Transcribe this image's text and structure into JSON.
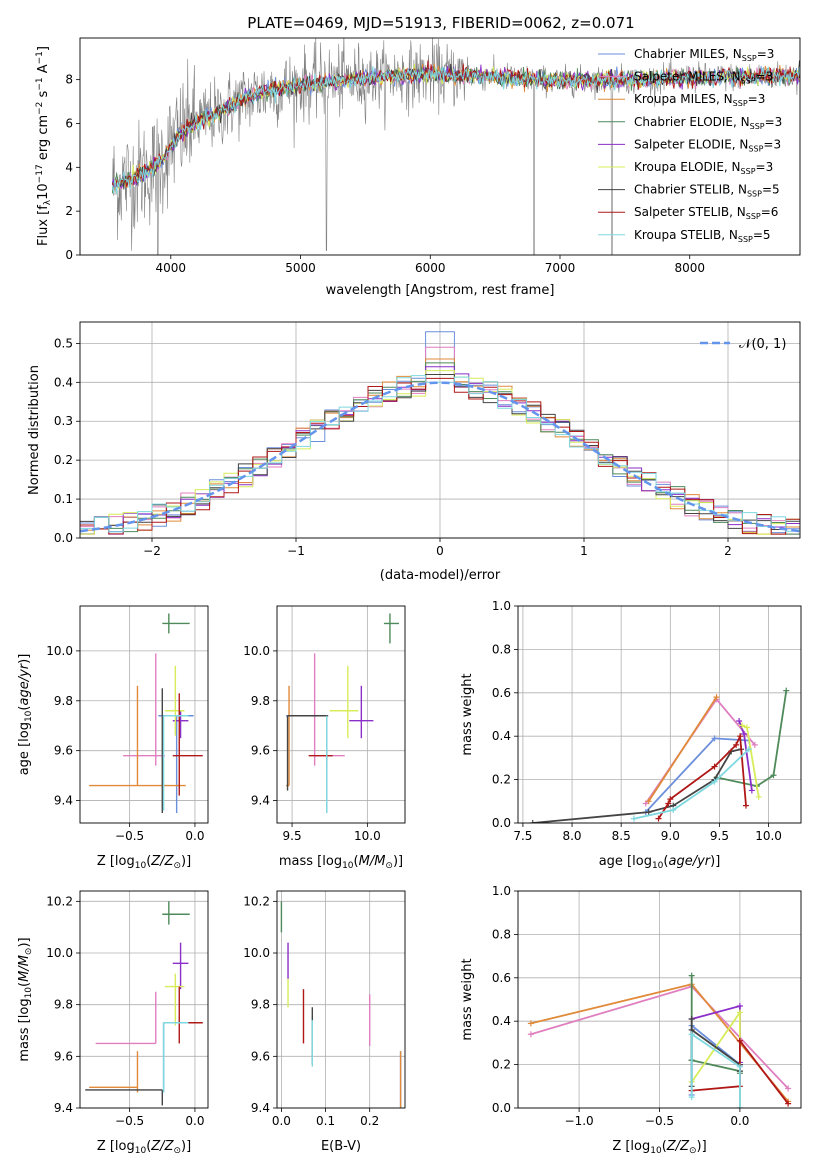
{
  "title": "PLATE=0469, MJD=51913, FIBERID=0062, z=0.071",
  "colors": {
    "Chabrier MILES": "#6b8fdc",
    "Salpeter MILES": "#e07fc0",
    "Kroupa MILES": "#e08a3a",
    "Chabrier ELODIE": "#4f8a5a",
    "Salpeter ELODIE": "#8a2fc8",
    "Kroupa ELODIE": "#d8ec5a",
    "Chabrier STELIB": "#444444",
    "Salpeter STELIB": "#b01818",
    "Kroupa STELIB": "#7fd8e0",
    "data": "#808080",
    "normal": "#6495ed"
  },
  "chart_data": [
    {
      "type": "line",
      "panel": "spectrum",
      "xlabel": "wavelength [Angstrom, rest frame]",
      "ylabel": "Flux [f_λ10^-17 erg cm^-2 s^-1 A^-1]",
      "xlim": [
        3300,
        8850
      ],
      "ylim": [
        0,
        9.9
      ],
      "xticks": [
        "4000",
        "5000",
        "6000",
        "7000",
        "8000"
      ],
      "yticks": [
        "0",
        "2",
        "4",
        "6",
        "8"
      ],
      "legend_position": "right",
      "legend": [
        {
          "name": "Chabrier MILES",
          "label": "Chabrier MILES, N",
          "sub": "SSP",
          "n": "=3"
        },
        {
          "name": "Salpeter MILES",
          "label": "Salpeter MILES, N",
          "sub": "SSP",
          "n": "=3"
        },
        {
          "name": "Kroupa MILES",
          "label": "Kroupa MILES, N",
          "sub": "SSP",
          "n": "=3"
        },
        {
          "name": "Chabrier ELODIE",
          "label": "Chabrier ELODIE, N",
          "sub": "SSP",
          "n": "=3"
        },
        {
          "name": "Salpeter ELODIE",
          "label": "Salpeter ELODIE, N",
          "sub": "SSP",
          "n": "=3"
        },
        {
          "name": "Kroupa ELODIE",
          "label": "Kroupa ELODIE, N",
          "sub": "SSP",
          "n": "=3"
        },
        {
          "name": "Chabrier STELIB",
          "label": "Chabrier STELIB, N",
          "sub": "SSP",
          "n": "=5"
        },
        {
          "name": "Salpeter STELIB",
          "label": "Salpeter STELIB, N",
          "sub": "SSP",
          "n": "=6"
        },
        {
          "name": "Kroupa STELIB",
          "label": "Kroupa STELIB, N",
          "sub": "SSP",
          "n": "=5"
        }
      ],
      "model_continuum": {
        "x": [
          3550,
          3650,
          3750,
          3850,
          3950,
          4050,
          4150,
          4250,
          4350,
          4450,
          4550,
          4650,
          4750,
          4850,
          4950,
          5050,
          5200,
          5400,
          5600,
          5800,
          6000,
          6200,
          6400,
          6600,
          6800,
          7000,
          7200,
          7400,
          7600,
          7800,
          8000,
          8200,
          8400,
          8600,
          8800
        ],
        "y": [
          3.2,
          3.4,
          3.6,
          3.9,
          4.5,
          5.4,
          5.9,
          6.2,
          6.4,
          6.8,
          7.1,
          7.3,
          7.5,
          7.6,
          7.7,
          7.8,
          7.9,
          8.0,
          8.1,
          8.2,
          8.25,
          8.2,
          8.15,
          8.1,
          8.0,
          7.95,
          7.95,
          8.0,
          8.0,
          8.05,
          8.1,
          8.1,
          8.15,
          8.15,
          8.2
        ]
      },
      "data_noise_sigma": 0.9
    },
    {
      "type": "line",
      "panel": "residual_histograms",
      "xlabel": "(data-model)/error",
      "ylabel": "Normed distribution",
      "xlim": [
        -2.5,
        2.5
      ],
      "ylim": [
        0,
        0.555
      ],
      "xticks": [
        "−2",
        "−1",
        "0",
        "1",
        "2"
      ],
      "yticks": [
        "0.0",
        "0.1",
        "0.2",
        "0.3",
        "0.4",
        "0.5"
      ],
      "grid": true,
      "bin_width": 0.1,
      "legend": [
        {
          "label": "𝒩(0, 1)"
        }
      ],
      "histogram_peak_values": [
        0.53,
        0.49,
        0.46,
        0.45,
        0.44,
        0.43,
        0.42,
        0.41,
        0.4
      ]
    },
    {
      "type": "scatter",
      "panel": "age_vs_Z",
      "xlabel": "Z [log10(Z/Z⊙)]",
      "ylabel": "age [log10(age/yr)]",
      "xlim": [
        -0.88,
        0.1
      ],
      "ylim": [
        9.31,
        10.18
      ],
      "xticks": [
        "−0.5",
        "0.0"
      ],
      "yticks": [
        "9.4",
        "9.6",
        "9.8",
        "10.0"
      ],
      "grid": true,
      "points": [
        {
          "series": "Chabrier MILES",
          "x": -0.14,
          "y": 9.74,
          "xerr": [
            0.14,
            0.13
          ],
          "yerr": [
            0.39,
            0.0
          ]
        },
        {
          "series": "Salpeter MILES",
          "x": -0.3,
          "y": 9.58,
          "xerr": [
            0.25,
            0.07
          ],
          "yerr": [
            0.04,
            0.41
          ]
        },
        {
          "series": "Kroupa MILES",
          "x": -0.44,
          "y": 9.46,
          "xerr": [
            0.37,
            0.37
          ],
          "yerr": [
            0.0,
            0.4
          ]
        },
        {
          "series": "Chabrier ELODIE",
          "x": -0.2,
          "y": 10.11,
          "xerr": [
            0.05,
            0.16
          ],
          "yerr": [
            0.04,
            0.04
          ]
        },
        {
          "series": "Salpeter ELODIE",
          "x": -0.11,
          "y": 9.72,
          "xerr": [
            0.06,
            0.06
          ],
          "yerr": [
            0.07,
            0.04
          ]
        },
        {
          "series": "Kroupa ELODIE",
          "x": -0.15,
          "y": 9.76,
          "xerr": [
            0.08,
            0.07
          ],
          "yerr": [
            0.1,
            0.18
          ]
        },
        {
          "series": "Chabrier STELIB",
          "x": -0.25,
          "y": 9.6,
          "xerr": [
            0.0,
            0.0
          ],
          "yerr": [
            0.25,
            0.25
          ]
        },
        {
          "series": "Salpeter STELIB",
          "x": -0.12,
          "y": 9.58,
          "xerr": [
            0.05,
            0.18
          ],
          "yerr": [
            0.16,
            0.25
          ]
        },
        {
          "series": "Kroupa STELIB",
          "x": -0.24,
          "y": 9.74,
          "xerr": [
            0.0,
            0.19
          ],
          "yerr": [
            0.38,
            0.0
          ]
        }
      ]
    },
    {
      "type": "scatter",
      "panel": "age_vs_mass",
      "xlabel": "mass [log10(M/M⊙)]",
      "ylabel": "",
      "xlim": [
        9.4,
        10.25
      ],
      "ylim": [
        9.31,
        10.18
      ],
      "xticks": [
        "9.5",
        "10.0"
      ],
      "yticks": [
        "9.4",
        "9.6",
        "9.8",
        "10.0"
      ],
      "grid": true,
      "points": [
        {
          "series": "Chabrier MILES",
          "x": 9.73,
          "y": 9.74,
          "xerr": [
            0.27,
            0.0
          ],
          "yerr": [
            0.39,
            0.0
          ]
        },
        {
          "series": "Salpeter MILES",
          "x": 9.65,
          "y": 9.58,
          "xerr": [
            0.0,
            0.2
          ],
          "yerr": [
            0.04,
            0.41
          ]
        },
        {
          "series": "Kroupa MILES",
          "x": 9.48,
          "y": 9.46,
          "xerr": [
            0.02,
            0.0
          ],
          "yerr": [
            0.0,
            0.4
          ]
        },
        {
          "series": "Chabrier ELODIE",
          "x": 10.15,
          "y": 10.11,
          "xerr": [
            0.04,
            0.06
          ],
          "yerr": [
            0.08,
            0.04
          ]
        },
        {
          "series": "Salpeter ELODIE",
          "x": 9.96,
          "y": 9.72,
          "xerr": [
            0.08,
            0.08
          ],
          "yerr": [
            0.07,
            0.14
          ]
        },
        {
          "series": "Kroupa ELODIE",
          "x": 9.87,
          "y": 9.76,
          "xerr": [
            0.12,
            0.07
          ],
          "yerr": [
            0.11,
            0.18
          ]
        },
        {
          "series": "Chabrier STELIB",
          "x": 9.47,
          "y": 9.74,
          "xerr": [
            0.0,
            0.27
          ],
          "yerr": [
            0.3,
            0.0
          ]
        },
        {
          "series": "Salpeter STELIB",
          "x": 9.73,
          "y": 9.58,
          "xerr": [
            0.12,
            0.04
          ],
          "yerr": [
            0.02,
            0.02
          ]
        },
        {
          "series": "Kroupa STELIB",
          "x": 9.73,
          "y": 9.74,
          "xerr": [
            0.0,
            0.0
          ],
          "yerr": [
            0.39,
            0.0
          ]
        }
      ]
    },
    {
      "type": "line",
      "panel": "mass_weight_vs_age",
      "xlabel": "age [log10(age/yr)]",
      "ylabel": "mass weight",
      "xlim": [
        7.45,
        10.33
      ],
      "ylim": [
        0,
        1
      ],
      "xticks": [
        "7.5",
        "8.0",
        "8.5",
        "9.0",
        "9.5",
        "10.0"
      ],
      "yticks": [
        "0.0",
        "0.2",
        "0.4",
        "0.6",
        "0.8",
        "1.0"
      ],
      "grid": true,
      "series": [
        {
          "name": "Chabrier MILES",
          "x": [
            8.75,
            9.45,
            9.8
          ],
          "y": [
            0.05,
            0.39,
            0.38
          ]
        },
        {
          "name": "Salpeter MILES",
          "x": [
            8.75,
            9.47,
            9.86
          ],
          "y": [
            0.09,
            0.57,
            0.36
          ]
        },
        {
          "name": "Kroupa MILES",
          "x": [
            8.78,
            9.47
          ],
          "y": [
            0.1,
            0.58
          ]
        },
        {
          "name": "Chabrier ELODIE",
          "x": [
            9.47,
            9.88,
            10.05,
            10.18
          ],
          "y": [
            0.21,
            0.17,
            0.22,
            0.61
          ]
        },
        {
          "name": "Salpeter ELODIE",
          "x": [
            9.7,
            9.75,
            9.83
          ],
          "y": [
            0.47,
            0.41,
            0.15
          ]
        },
        {
          "name": "Kroupa ELODIE",
          "x": [
            9.73,
            9.78,
            9.9
          ],
          "y": [
            0.45,
            0.44,
            0.12
          ]
        },
        {
          "name": "Chabrier STELIB",
          "x": [
            7.6,
            8.78,
            9.03,
            9.45,
            9.62,
            9.72
          ],
          "y": [
            0.0,
            0.05,
            0.08,
            0.2,
            0.33,
            0.34
          ]
        },
        {
          "name": "Salpeter STELIB",
          "x": [
            8.88,
            8.98,
            9.0,
            9.45,
            9.67,
            9.71,
            9.77
          ],
          "y": [
            0.02,
            0.09,
            0.11,
            0.26,
            0.36,
            0.4,
            0.08
          ]
        },
        {
          "name": "Kroupa STELIB",
          "x": [
            8.63,
            9.03,
            9.45,
            9.8
          ],
          "y": [
            0.02,
            0.06,
            0.19,
            0.34
          ]
        }
      ]
    },
    {
      "type": "scatter",
      "panel": "mass_vs_Z",
      "xlabel": "Z [log10(Z/Z⊙)]",
      "ylabel": "mass [log10(M/M⊙)]",
      "xlim": [
        -0.88,
        0.1
      ],
      "ylim": [
        9.4,
        10.24
      ],
      "xticks": [
        "−0.5",
        "0.0"
      ],
      "yticks": [
        "9.4",
        "9.6",
        "9.8",
        "10.0",
        "10.2"
      ],
      "grid": true,
      "points": [
        {
          "series": "Chabrier MILES",
          "x": -0.24,
          "y": 9.73,
          "xerr": [
            0.0,
            0.19
          ],
          "yerr": [
            0.27,
            0.0
          ]
        },
        {
          "series": "Salpeter MILES",
          "x": -0.3,
          "y": 9.65,
          "xerr": [
            0.46,
            0.0
          ],
          "yerr": [
            0.0,
            0.2
          ]
        },
        {
          "series": "Kroupa MILES",
          "x": -0.44,
          "y": 9.48,
          "xerr": [
            0.37,
            0.0
          ],
          "yerr": [
            0.02,
            0.14
          ]
        },
        {
          "series": "Chabrier ELODIE",
          "x": -0.2,
          "y": 10.15,
          "xerr": [
            0.05,
            0.16
          ],
          "yerr": [
            0.04,
            0.05
          ]
        },
        {
          "series": "Salpeter ELODIE",
          "x": -0.11,
          "y": 9.96,
          "xerr": [
            0.06,
            0.06
          ],
          "yerr": [
            0.1,
            0.08
          ]
        },
        {
          "series": "Kroupa ELODIE",
          "x": -0.15,
          "y": 9.87,
          "xerr": [
            0.08,
            0.07
          ],
          "yerr": [
            0.15,
            0.05
          ]
        },
        {
          "series": "Chabrier STELIB",
          "x": -0.25,
          "y": 9.47,
          "xerr": [
            0.59,
            0.0
          ],
          "yerr": [
            0.06,
            0.0
          ]
        },
        {
          "series": "Salpeter STELIB",
          "x": -0.12,
          "y": 9.73,
          "xerr": [
            0.12,
            0.18
          ],
          "yerr": [
            0.08,
            0.14
          ]
        },
        {
          "series": "Kroupa STELIB",
          "x": -0.24,
          "y": 9.73,
          "xerr": [
            0.0,
            0.19
          ],
          "yerr": [
            0.27,
            0.0
          ]
        }
      ]
    },
    {
      "type": "scatter",
      "panel": "mass_vs_EBV",
      "xlabel": "E(B-V)",
      "ylabel": "",
      "xlim": [
        -0.01,
        0.28
      ],
      "ylim": [
        9.4,
        10.24
      ],
      "xticks": [
        "0.0",
        "0.1",
        "0.2"
      ],
      "yticks": [
        "9.4",
        "9.6",
        "9.8",
        "10.0",
        "10.2"
      ],
      "grid": true,
      "points": [
        {
          "series": "Chabrier MILES",
          "x": 0.27,
          "y": 9.46,
          "yerr": [
            0.08,
            0.16
          ]
        },
        {
          "series": "Salpeter MILES",
          "x": 0.2,
          "y": 9.74,
          "yerr": [
            0.1,
            0.1
          ]
        },
        {
          "series": "Kroupa MILES",
          "x": 0.27,
          "y": 9.48,
          "yerr": [
            0.08,
            0.14
          ]
        },
        {
          "series": "Chabrier ELODIE",
          "x": 0.0,
          "y": 10.14,
          "yerr": [
            0.06,
            0.06
          ]
        },
        {
          "series": "Salpeter ELODIE",
          "x": 0.015,
          "y": 9.95,
          "yerr": [
            0.05,
            0.09
          ]
        },
        {
          "series": "Kroupa ELODIE",
          "x": 0.015,
          "y": 9.86,
          "yerr": [
            0.07,
            0.04
          ]
        },
        {
          "series": "Chabrier STELIB",
          "x": 0.07,
          "y": 9.67,
          "yerr": [
            0.1,
            0.12
          ]
        },
        {
          "series": "Salpeter STELIB",
          "x": 0.05,
          "y": 9.76,
          "yerr": [
            0.11,
            0.1
          ]
        },
        {
          "series": "Kroupa STELIB",
          "x": 0.07,
          "y": 9.64,
          "yerr": [
            0.08,
            0.1
          ]
        }
      ]
    },
    {
      "type": "line",
      "panel": "mass_weight_vs_Z",
      "xlabel": "Z [log10(Z/Z⊙)]",
      "ylabel": "mass weight",
      "xlim": [
        -1.38,
        0.38
      ],
      "ylim": [
        0,
        1
      ],
      "xticks": [
        "−1.0",
        "−0.5",
        "0.0"
      ],
      "yticks": [
        "0.0",
        "0.2",
        "0.4",
        "0.6",
        "0.8",
        "1.0"
      ],
      "grid": true,
      "series": [
        {
          "name": "Chabrier MILES",
          "x": [
            -0.3,
            -0.3,
            0.0,
            0.0
          ],
          "y": [
            0.06,
            0.38,
            0.2,
            0.0
          ]
        },
        {
          "name": "Salpeter MILES",
          "x": [
            -1.3,
            -0.3,
            0.3
          ],
          "y": [
            0.34,
            0.56,
            0.09
          ]
        },
        {
          "name": "Kroupa MILES",
          "x": [
            -1.3,
            -0.3,
            0.3
          ],
          "y": [
            0.39,
            0.57,
            0.03
          ]
        },
        {
          "name": "Chabrier ELODIE",
          "x": [
            -0.3,
            -0.3,
            -0.3,
            0.0,
            0.0
          ],
          "y": [
            0.61,
            0.22,
            0.22,
            0.17,
            0.16
          ]
        },
        {
          "name": "Salpeter ELODIE",
          "x": [
            -0.3,
            0.0,
            0.0
          ],
          "y": [
            0.41,
            0.47,
            0.21
          ]
        },
        {
          "name": "Kroupa ELODIE",
          "x": [
            -0.3,
            -0.3,
            0.0,
            0.0
          ],
          "y": [
            0.12,
            0.12,
            0.44,
            0.0
          ]
        },
        {
          "name": "Chabrier STELIB",
          "x": [
            -0.3,
            -0.3,
            -0.3,
            0.0,
            0.0
          ],
          "y": [
            0.1,
            0.41,
            0.36,
            0.2,
            0.17
          ]
        },
        {
          "name": "Salpeter STELIB",
          "x": [
            -0.3,
            0.0,
            0.0,
            0.3
          ],
          "y": [
            0.08,
            0.1,
            0.31,
            0.02
          ]
        },
        {
          "name": "Kroupa STELIB",
          "x": [
            -0.3,
            -0.3,
            0.0,
            0.0
          ],
          "y": [
            0.05,
            0.34,
            0.19,
            0.0
          ]
        }
      ]
    }
  ]
}
